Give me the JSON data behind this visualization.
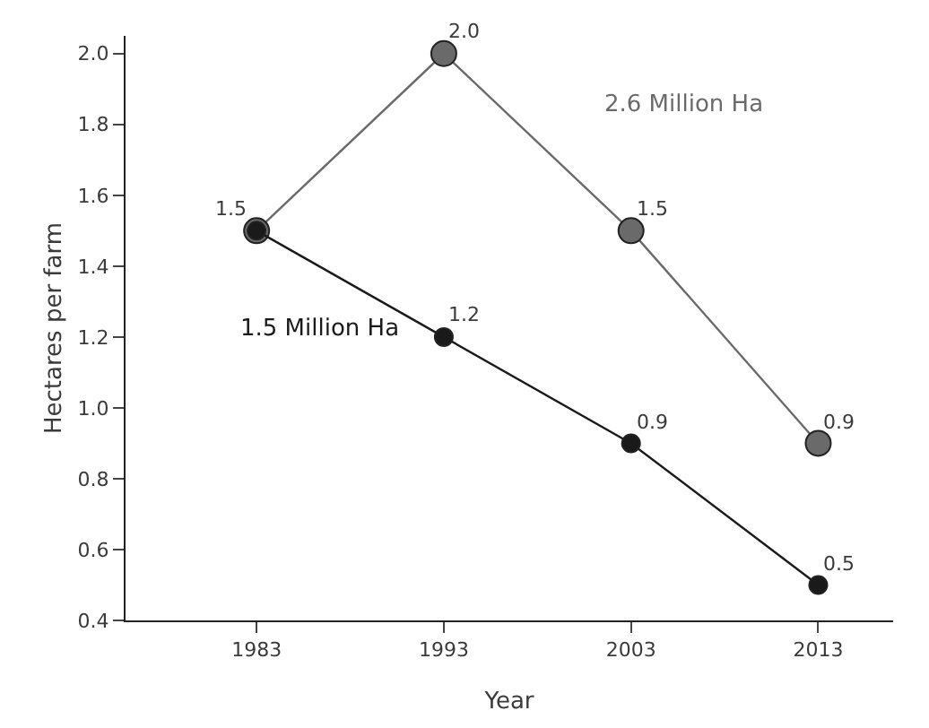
{
  "chart_data": {
    "type": "line",
    "xlabel": "Year",
    "ylabel": "Hectares per farm",
    "x": [
      1983,
      1993,
      2003,
      2013
    ],
    "series": [
      {
        "name": "2.6 Million Ha",
        "color": "#6a6a6a",
        "values": [
          1.5,
          2.0,
          1.5,
          0.9
        ],
        "value_labels": [
          null,
          "2.0",
          "1.5",
          "0.9"
        ]
      },
      {
        "name": "1.5 Million Ha",
        "color": "#1a1a1a",
        "values": [
          1.5,
          1.2,
          0.9,
          0.5
        ],
        "value_labels": [
          "1.5",
          "1.2",
          "0.9",
          "0.5"
        ]
      }
    ],
    "xlim": [
      1976,
      2017
    ],
    "ylim": [
      0.4,
      2.05
    ],
    "xticks": [
      1983,
      1993,
      2003,
      2013
    ],
    "yticks": [
      {
        "value": 0.4,
        "label": "0.4"
      },
      {
        "value": 0.6,
        "label": "0.6"
      },
      {
        "value": 0.8,
        "label": "0.8"
      },
      {
        "value": 1.0,
        "label": "1.0"
      },
      {
        "value": 1.2,
        "label": "1.2"
      },
      {
        "value": 1.4,
        "label": "1.4"
      },
      {
        "value": 1.6,
        "label": "1.6"
      },
      {
        "value": 1.8,
        "label": "1.8"
      },
      {
        "value": 2.0,
        "label": "2.0"
      }
    ],
    "grid": false,
    "legend": false,
    "marker": "circle",
    "line_style": "solid"
  }
}
